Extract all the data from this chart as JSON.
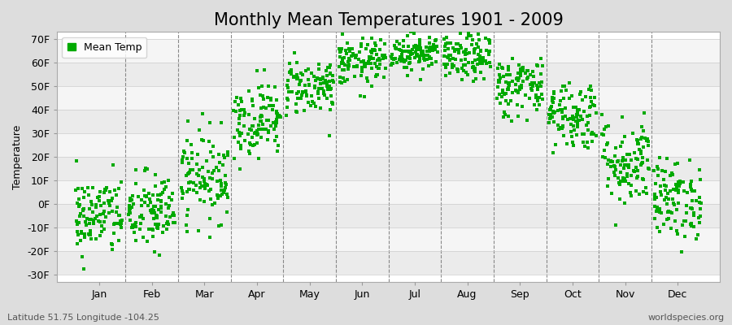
{
  "title": "Monthly Mean Temperatures 1901 - 2009",
  "ylabel": "Temperature",
  "xlabel_labels": [
    "Jan",
    "Feb",
    "Mar",
    "Apr",
    "May",
    "Jun",
    "Jul",
    "Aug",
    "Sep",
    "Oct",
    "Nov",
    "Dec"
  ],
  "ytick_labels": [
    "-30F",
    "-20F",
    "-10F",
    "0F",
    "10F",
    "20F",
    "30F",
    "40F",
    "50F",
    "60F",
    "70F"
  ],
  "ytick_values": [
    -30,
    -20,
    -10,
    0,
    10,
    20,
    30,
    40,
    50,
    60,
    70
  ],
  "ylim": [
    -33,
    73
  ],
  "xlim": [
    -0.3,
    12.3
  ],
  "dot_color": "#00aa00",
  "bg_color": "#dddddd",
  "plot_bg_color": "#ffffff",
  "stripe_color": "#ebebeb",
  "stripe_color2": "#f5f5f5",
  "vline_color": "#888888",
  "legend_label": "Mean Temp",
  "footer_left": "Latitude 51.75 Longitude -104.25",
  "footer_right": "worldspecies.org",
  "title_fontsize": 15,
  "axis_fontsize": 9,
  "footer_fontsize": 8,
  "monthly_means": [
    -5.0,
    -3.5,
    12.0,
    36.0,
    50.0,
    60.0,
    64.5,
    62.0,
    50.0,
    38.0,
    18.0,
    2.0
  ],
  "monthly_std": [
    8.5,
    8.5,
    9.5,
    8.0,
    6.0,
    5.0,
    4.0,
    5.0,
    6.5,
    7.5,
    9.5,
    8.5
  ],
  "n_years": 109,
  "seed": 42,
  "marker_size": 5
}
